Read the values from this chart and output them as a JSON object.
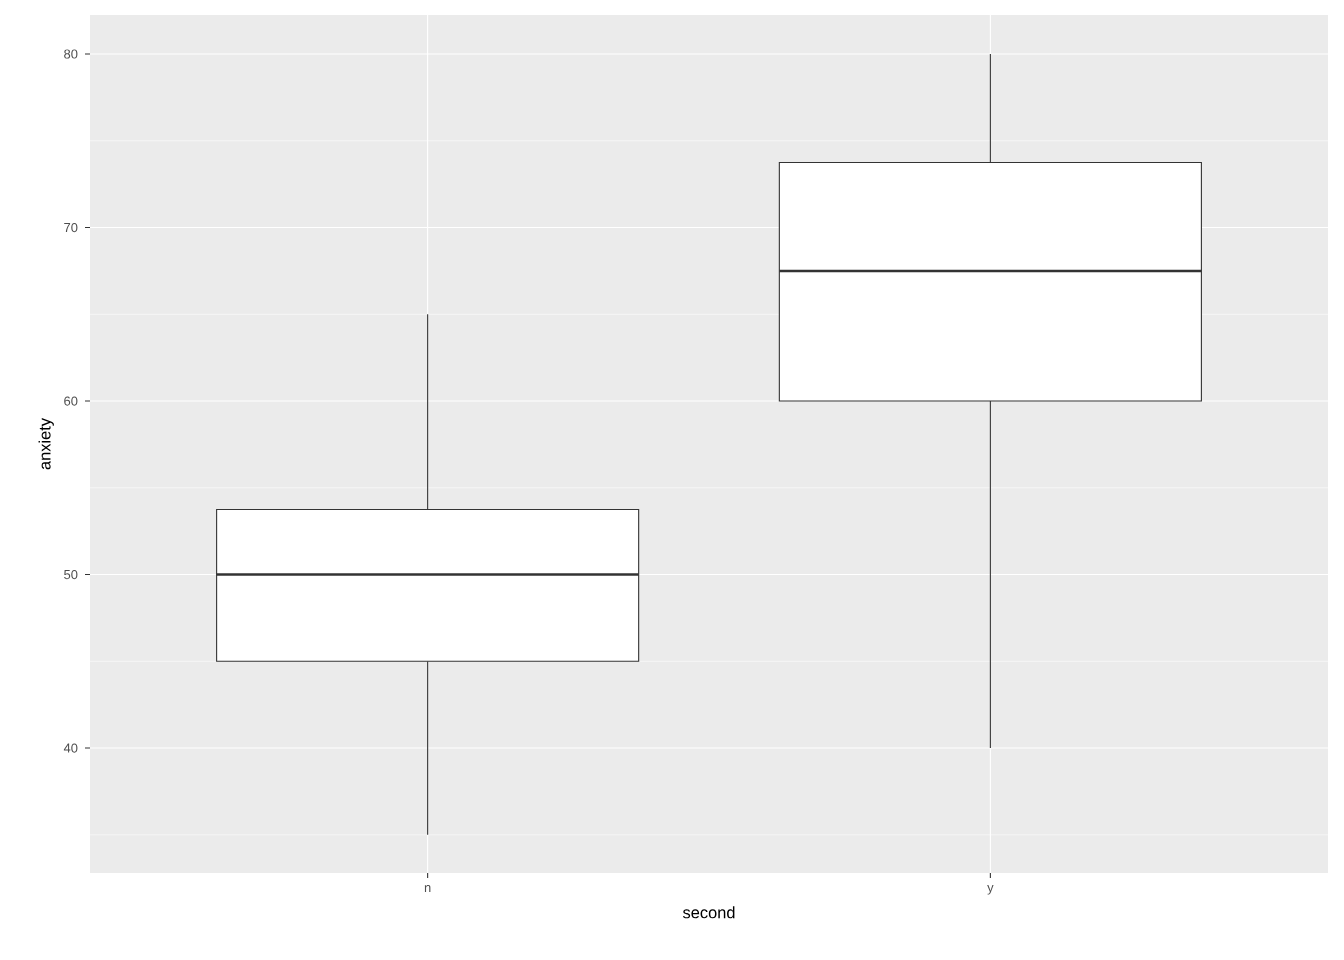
{
  "chart_data": {
    "type": "box",
    "xlabel": "second",
    "ylabel": "anxiety",
    "categories": [
      "n",
      "y"
    ],
    "boxes": [
      {
        "low": 35,
        "q1": 45,
        "median": 50,
        "q3": 53.75,
        "high": 65
      },
      {
        "low": 40,
        "q1": 60,
        "median": 67.5,
        "q3": 73.75,
        "high": 80
      }
    ],
    "ylim": [
      32.8,
      82.25
    ],
    "yticks": [
      40,
      50,
      60,
      70,
      80
    ],
    "grid": true
  }
}
